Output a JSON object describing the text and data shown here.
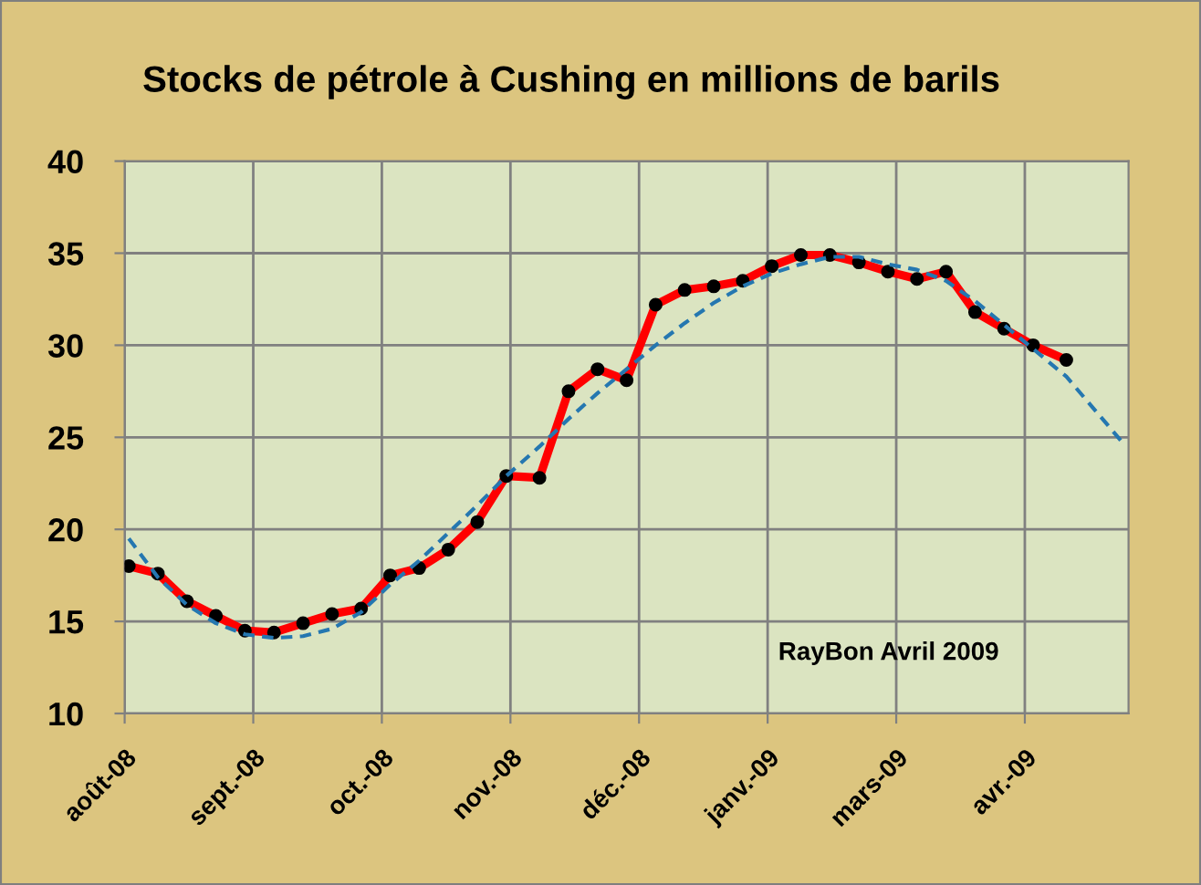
{
  "chart_data": {
    "type": "line",
    "title": "Stocks de pétrole à Cushing en millions de barils",
    "annotations": [
      "RayBon Avril 2009"
    ],
    "x": [
      "2008-08-30",
      "2008-09-06",
      "2008-09-13",
      "2008-09-20",
      "2008-09-27",
      "2008-10-04",
      "2008-10-11",
      "2008-10-18",
      "2008-10-25",
      "2008-11-01",
      "2008-11-08",
      "2008-11-15",
      "2008-11-22",
      "2008-11-29",
      "2008-12-07",
      "2008-12-14",
      "2008-12-21",
      "2008-12-28",
      "2009-01-04",
      "2009-01-11",
      "2009-01-18",
      "2009-01-25",
      "2009-02-01",
      "2009-02-08",
      "2009-02-15",
      "2009-02-22",
      "2009-03-01",
      "2009-03-08",
      "2009-03-15",
      "2009-03-22",
      "2009-03-29",
      "2009-04-05",
      "2009-04-13"
    ],
    "series": [
      {
        "color": "#ff0000",
        "marker": "circle",
        "line_style": "solid",
        "values": [
          18.0,
          17.6,
          16.1,
          15.3,
          14.5,
          14.4,
          14.9,
          15.4,
          15.7,
          17.5,
          17.9,
          18.9,
          20.4,
          22.9,
          22.8,
          27.5,
          28.7,
          28.1,
          32.2,
          33.0,
          33.2,
          33.5,
          34.3,
          34.9,
          34.9,
          34.5,
          34.0,
          33.6,
          34.0,
          31.8,
          30.9,
          30.0,
          29.2
        ]
      },
      {
        "color": "#2577b0",
        "marker": "none",
        "line_style": "dashed",
        "x": [
          "2008-08-30",
          "2008-09-06",
          "2008-09-13",
          "2008-09-20",
          "2008-09-27",
          "2008-10-04",
          "2008-10-11",
          "2008-10-18",
          "2008-10-25",
          "2008-11-01",
          "2008-11-08",
          "2008-11-15",
          "2008-11-22",
          "2008-11-29",
          "2008-12-07",
          "2008-12-14",
          "2008-12-21",
          "2008-12-28",
          "2009-01-04",
          "2009-01-11",
          "2009-01-18",
          "2009-01-25",
          "2009-02-01",
          "2009-02-08",
          "2009-02-15",
          "2009-02-22",
          "2009-03-01",
          "2009-03-08",
          "2009-03-15",
          "2009-03-22",
          "2009-03-29",
          "2009-04-05",
          "2009-04-13",
          "2009-04-27"
        ],
        "values": [
          19.5,
          17.4,
          15.9,
          14.9,
          14.3,
          14.1,
          14.2,
          14.6,
          15.5,
          17.0,
          18.3,
          19.8,
          21.3,
          22.9,
          24.5,
          26.0,
          27.4,
          28.7,
          30.0,
          31.2,
          32.3,
          33.2,
          33.9,
          34.4,
          34.8,
          34.8,
          34.4,
          34.1,
          33.5,
          32.4,
          31.1,
          29.8,
          28.3,
          24.6
        ]
      }
    ],
    "xlim": [
      "2008-08-29",
      "2009-04-28"
    ],
    "xticks": [
      {
        "value": "2008-08-29",
        "label": "août-08"
      },
      {
        "value": "2008-09-29",
        "label": "sept.-08"
      },
      {
        "value": "2008-10-30",
        "label": "oct.-08"
      },
      {
        "value": "2008-11-30",
        "label": "nov.-08"
      },
      {
        "value": "2008-12-31",
        "label": "déc.-08"
      },
      {
        "value": "2009-01-31",
        "label": "janv.-09"
      },
      {
        "value": "2009-03-03",
        "label": "mars-09"
      },
      {
        "value": "2009-04-03",
        "label": "avr.-09"
      }
    ],
    "ylim": [
      10,
      40
    ],
    "yticks": [
      10,
      15,
      20,
      25,
      30,
      35,
      40
    ],
    "grid": true
  }
}
